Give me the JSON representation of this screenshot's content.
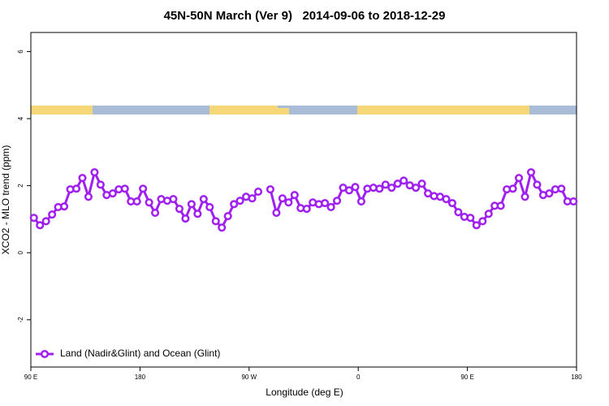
{
  "chart_data": {
    "type": "line",
    "title": "45N-50N March (Ver 9)   2014-09-06 to 2018-12-29",
    "x_label": "Longitude (deg E)",
    "y_label": "XCO2 - MLO trend (ppm)",
    "x": [
      92.5,
      97.5,
      102.5,
      107.5,
      112.5,
      117.5,
      122.5,
      127.5,
      132.5,
      137.5,
      142.5,
      147.5,
      152.5,
      157.5,
      162.5,
      167.5,
      172.5,
      177.5,
      182.5,
      187.5,
      192.5,
      197.5,
      202.5,
      207.5,
      212.5,
      217.5,
      222.5,
      227.5,
      232.5,
      237.5,
      242.5,
      247.5,
      252.5,
      257.5,
      262.5,
      267.5,
      272.5,
      277.5,
      282.5,
      287.5,
      292.5,
      297.5,
      302.5,
      307.5,
      312.5,
      317.5,
      322.5,
      327.5,
      332.5,
      337.5,
      342.5,
      347.5,
      352.5,
      357.5,
      362.5,
      367.5,
      372.5,
      377.5,
      382.5,
      387.5,
      392.5,
      397.5,
      402.5,
      407.5,
      412.5,
      417.5,
      422.5,
      427.5,
      432.5,
      437.5,
      442.5,
      447.5,
      452.5,
      457.5,
      462.5,
      467.5,
      472.5,
      477.5,
      482.5,
      487.5,
      492.5,
      497.5,
      502.5,
      507.5,
      512.5,
      517.5,
      522.5,
      527.5,
      532.5,
      537.5
    ],
    "series": [
      {
        "name": "Land (Nadir&Glint) and Ocean (Glint)",
        "color": "#a020f0",
        "values": [
          1.04,
          0.82,
          0.94,
          1.14,
          1.36,
          1.38,
          1.89,
          1.91,
          2.23,
          1.67,
          2.4,
          2.03,
          1.72,
          1.77,
          1.89,
          1.91,
          1.53,
          1.53,
          1.91,
          1.5,
          1.19,
          1.6,
          1.55,
          1.6,
          1.31,
          1.02,
          1.45,
          1.16,
          1.6,
          1.36,
          0.94,
          0.75,
          1.09,
          1.45,
          1.55,
          1.67,
          1.62,
          1.82,
          null,
          1.89,
          1.19,
          1.62,
          1.5,
          1.72,
          1.33,
          1.31,
          1.5,
          1.45,
          1.48,
          1.36,
          1.55,
          1.94,
          1.86,
          1.96,
          1.53,
          1.91,
          1.94,
          1.91,
          2.03,
          1.94,
          2.06,
          2.15,
          2.01,
          1.94,
          2.06,
          1.77,
          1.69,
          1.67,
          1.6,
          1.48,
          1.21,
          1.07,
          1.04,
          0.82,
          0.94,
          1.16,
          1.4,
          1.4,
          1.89,
          1.91,
          2.23,
          1.67,
          2.4,
          2.03,
          1.72,
          1.77,
          1.89,
          1.91,
          1.53,
          1.53
        ]
      }
    ],
    "xlim": [
      90,
      540
    ],
    "xticks": [
      {
        "value": 90,
        "label": "90 E"
      },
      180,
      {
        "value": 270,
        "label": "90 W"
      },
      {
        "value": 360,
        "label": "0"
      },
      {
        "value": 450,
        "label": "90 E"
      },
      {
        "value": 540,
        "label": "180"
      }
    ],
    "ylim": [
      -3.41,
      6.57
    ],
    "yticks": [
      -2,
      0,
      2,
      4,
      6
    ],
    "legend": "bottomleft"
  }
}
